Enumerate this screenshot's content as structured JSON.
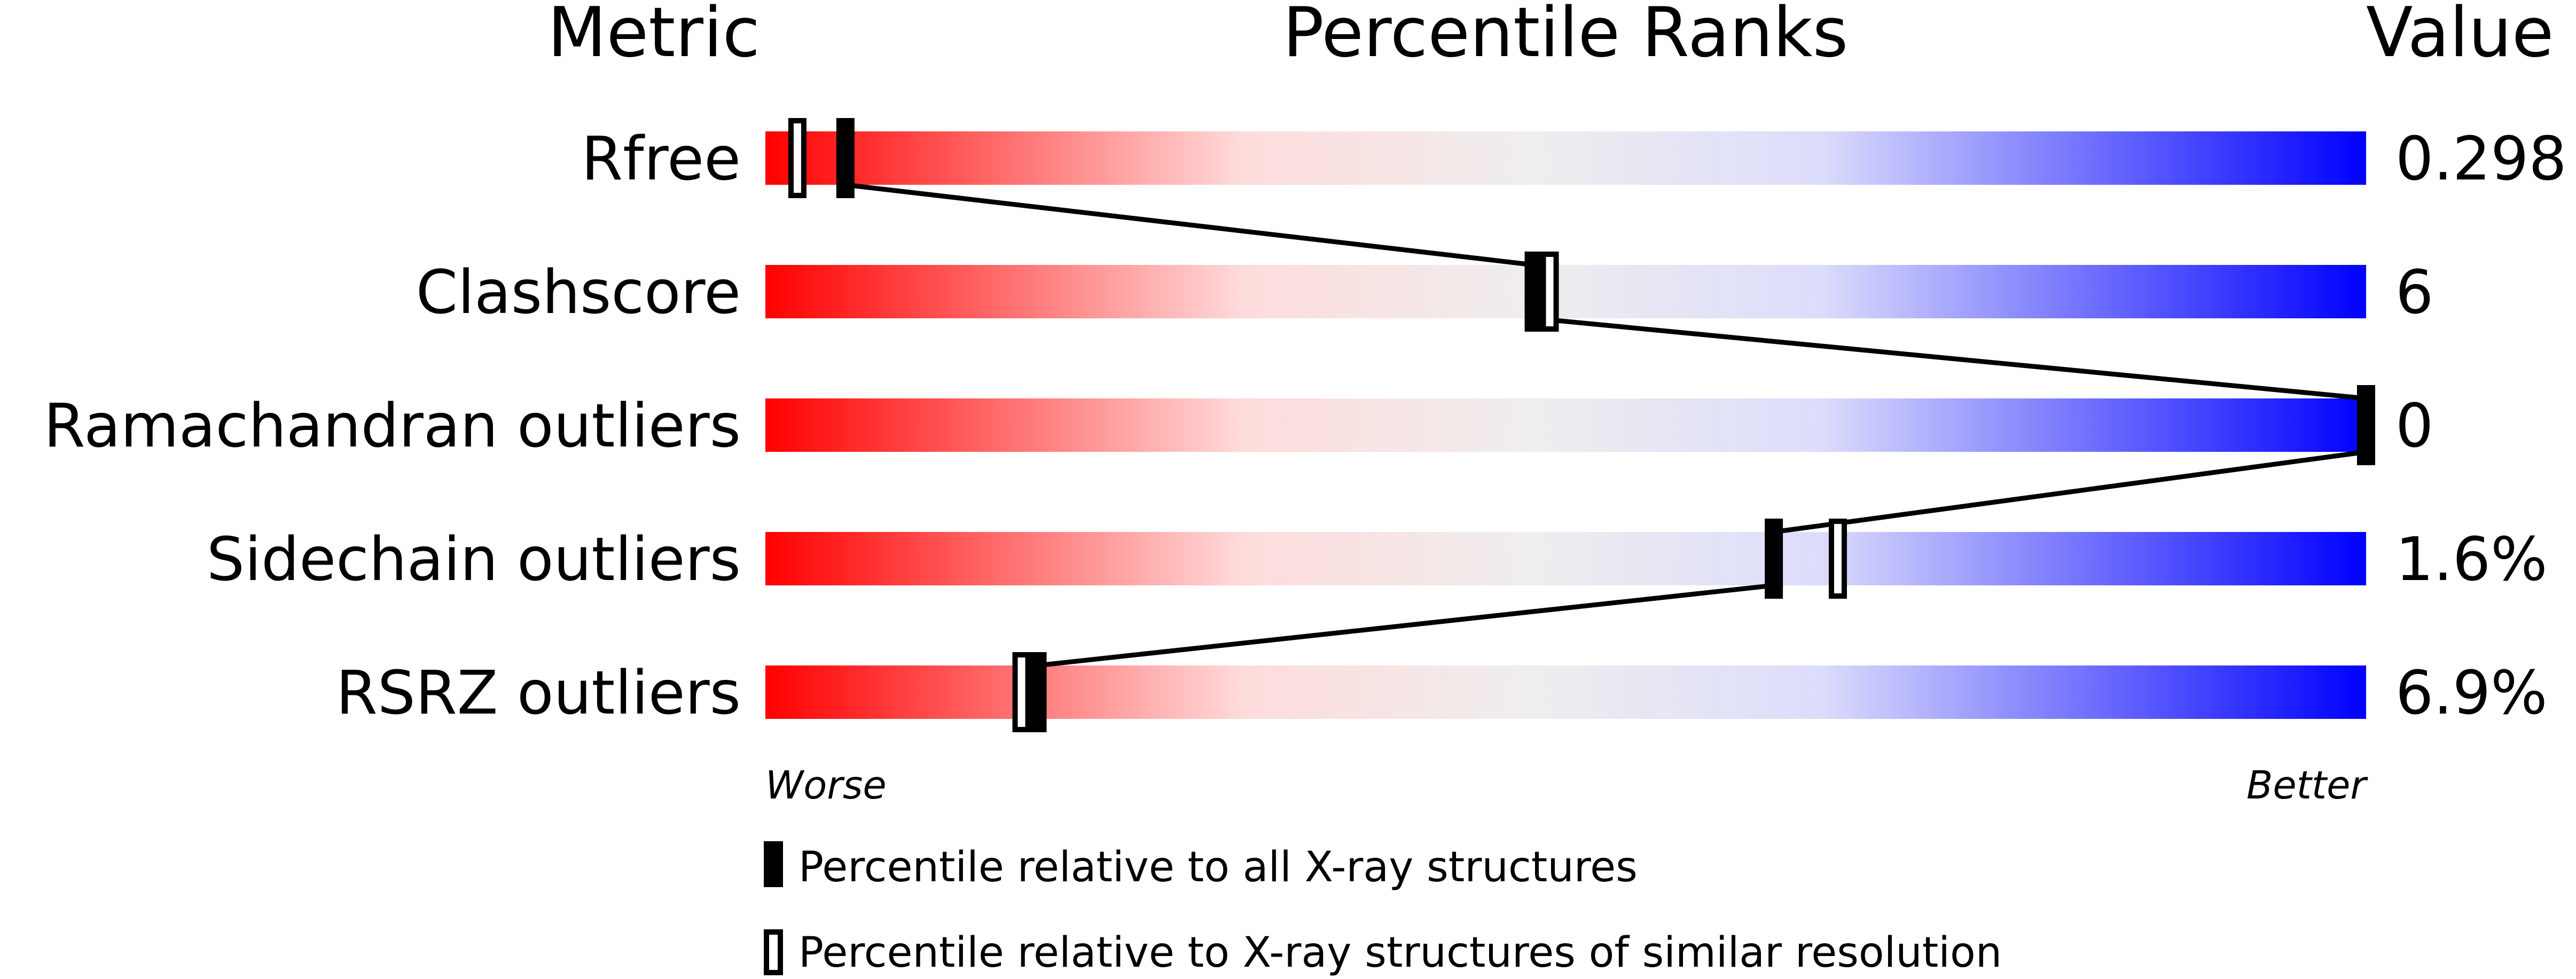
{
  "chart_data": {
    "type": "percentile-slider",
    "headers": {
      "metric": "Metric",
      "ranks": "Percentile Ranks",
      "value": "Value"
    },
    "axis": {
      "left_label": "Worse",
      "right_label": "Better",
      "range": [
        0,
        100
      ]
    },
    "gradient_colors": [
      "#ff0000",
      "#ffdcdc",
      "#eeeeee",
      "#dcdcfc",
      "#0000ff"
    ],
    "metrics": [
      {
        "name": "Rfree",
        "value": "0.298",
        "percentile_all": 5,
        "percentile_similar": 2
      },
      {
        "name": "Clashscore",
        "value": "6",
        "percentile_all": 48,
        "percentile_similar": 49
      },
      {
        "name": "Ramachandran outliers",
        "value": "0",
        "percentile_all": 100,
        "percentile_similar": 100
      },
      {
        "name": "Sidechain outliers",
        "value": "1.6%",
        "percentile_all": 63,
        "percentile_similar": 67
      },
      {
        "name": "RSRZ outliers",
        "value": "6.9%",
        "percentile_all": 17,
        "percentile_similar": 16
      }
    ],
    "legend": [
      {
        "marker": "filled",
        "label": "Percentile relative to all X-ray structures"
      },
      {
        "marker": "open",
        "label": "Percentile relative to X-ray structures of similar resolution"
      }
    ]
  }
}
